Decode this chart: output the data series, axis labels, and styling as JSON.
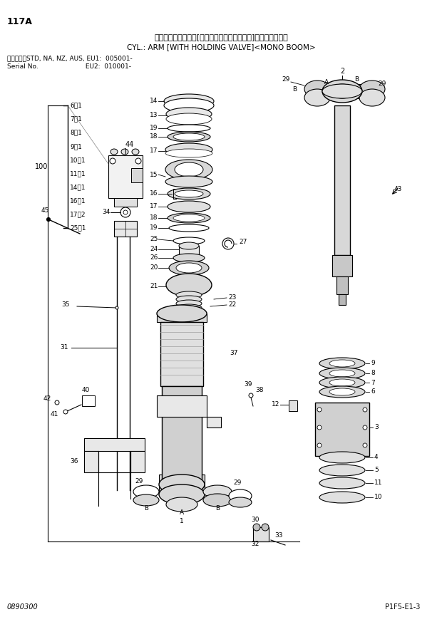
{
  "title_jp": "シリンダ：アーム　[ホールディングバルブ付]＜モノブーム＞",
  "title_en": "CYL.: ARM [WITH HOLDING VALVE]<MONO BOOM>",
  "page_id": "117A",
  "serial_line1": "適用号機　STD, NA, NZ, AUS, EU1:  005001-",
  "serial_line2": "Serial No.                       EU2:  010001-",
  "bottom_left": "0890300",
  "bottom_right": "P1F5-E1-3",
  "bg_color": "#ffffff",
  "lc": "#000000",
  "bracket_items": [
    "6～1",
    "7～1",
    "8～1",
    "9～1",
    "10～1",
    "11～1",
    "14～1",
    "16～1",
    "17～2",
    "25～1"
  ],
  "bracket_label": "100"
}
